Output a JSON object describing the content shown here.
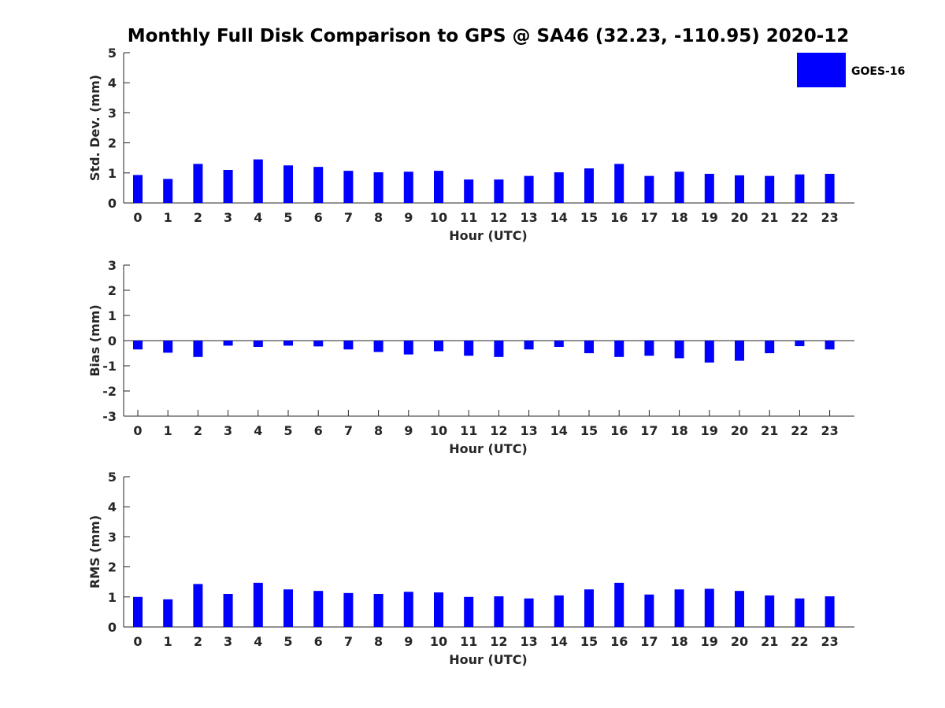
{
  "title": "Monthly Full Disk Comparison to GPS @ SA46 (32.23, -110.95) 2020-12",
  "legend": {
    "entries": [
      "GOES-16"
    ],
    "placement": "top-right"
  },
  "bar_color": "#0000ff",
  "chart_data": [
    {
      "type": "bar",
      "xlabel": "Hour (UTC)",
      "ylabel": "Std. Dev. (mm)",
      "ylim": [
        0,
        5
      ],
      "yticks": [
        0,
        1,
        2,
        3,
        4,
        5
      ],
      "categories": [
        "0",
        "1",
        "2",
        "3",
        "4",
        "5",
        "6",
        "7",
        "8",
        "9",
        "10",
        "11",
        "12",
        "13",
        "14",
        "15",
        "16",
        "17",
        "18",
        "19",
        "20",
        "21",
        "22",
        "23"
      ],
      "series": [
        {
          "name": "GOES-16",
          "values": [
            0.93,
            0.8,
            1.3,
            1.1,
            1.45,
            1.25,
            1.2,
            1.07,
            1.02,
            1.04,
            1.07,
            0.78,
            0.78,
            0.9,
            1.02,
            1.15,
            1.3,
            0.9,
            1.04,
            0.97,
            0.92,
            0.9,
            0.95,
            0.97
          ]
        }
      ]
    },
    {
      "type": "bar",
      "xlabel": "Hour (UTC)",
      "ylabel": "Bias (mm)",
      "ylim": [
        -3,
        3
      ],
      "yticks": [
        -3,
        -2,
        -1,
        0,
        1,
        2,
        3
      ],
      "categories": [
        "0",
        "1",
        "2",
        "3",
        "4",
        "5",
        "6",
        "7",
        "8",
        "9",
        "10",
        "11",
        "12",
        "13",
        "14",
        "15",
        "16",
        "17",
        "18",
        "19",
        "20",
        "21",
        "22",
        "23"
      ],
      "series": [
        {
          "name": "GOES-16",
          "values": [
            -0.35,
            -0.48,
            -0.65,
            -0.2,
            -0.25,
            -0.2,
            -0.23,
            -0.35,
            -0.45,
            -0.55,
            -0.42,
            -0.6,
            -0.65,
            -0.35,
            -0.25,
            -0.5,
            -0.65,
            -0.6,
            -0.7,
            -0.87,
            -0.8,
            -0.5,
            -0.22,
            -0.35
          ]
        }
      ]
    },
    {
      "type": "bar",
      "xlabel": "Hour (UTC)",
      "ylabel": "RMS (mm)",
      "ylim": [
        0,
        5
      ],
      "yticks": [
        0,
        1,
        2,
        3,
        4,
        5
      ],
      "categories": [
        "0",
        "1",
        "2",
        "3",
        "4",
        "5",
        "6",
        "7",
        "8",
        "9",
        "10",
        "11",
        "12",
        "13",
        "14",
        "15",
        "16",
        "17",
        "18",
        "19",
        "20",
        "21",
        "22",
        "23"
      ],
      "series": [
        {
          "name": "GOES-16",
          "values": [
            1.0,
            0.92,
            1.43,
            1.1,
            1.47,
            1.25,
            1.2,
            1.13,
            1.1,
            1.17,
            1.15,
            1.0,
            1.02,
            0.95,
            1.05,
            1.25,
            1.47,
            1.08,
            1.25,
            1.27,
            1.2,
            1.05,
            0.95,
            1.02
          ]
        }
      ]
    }
  ]
}
